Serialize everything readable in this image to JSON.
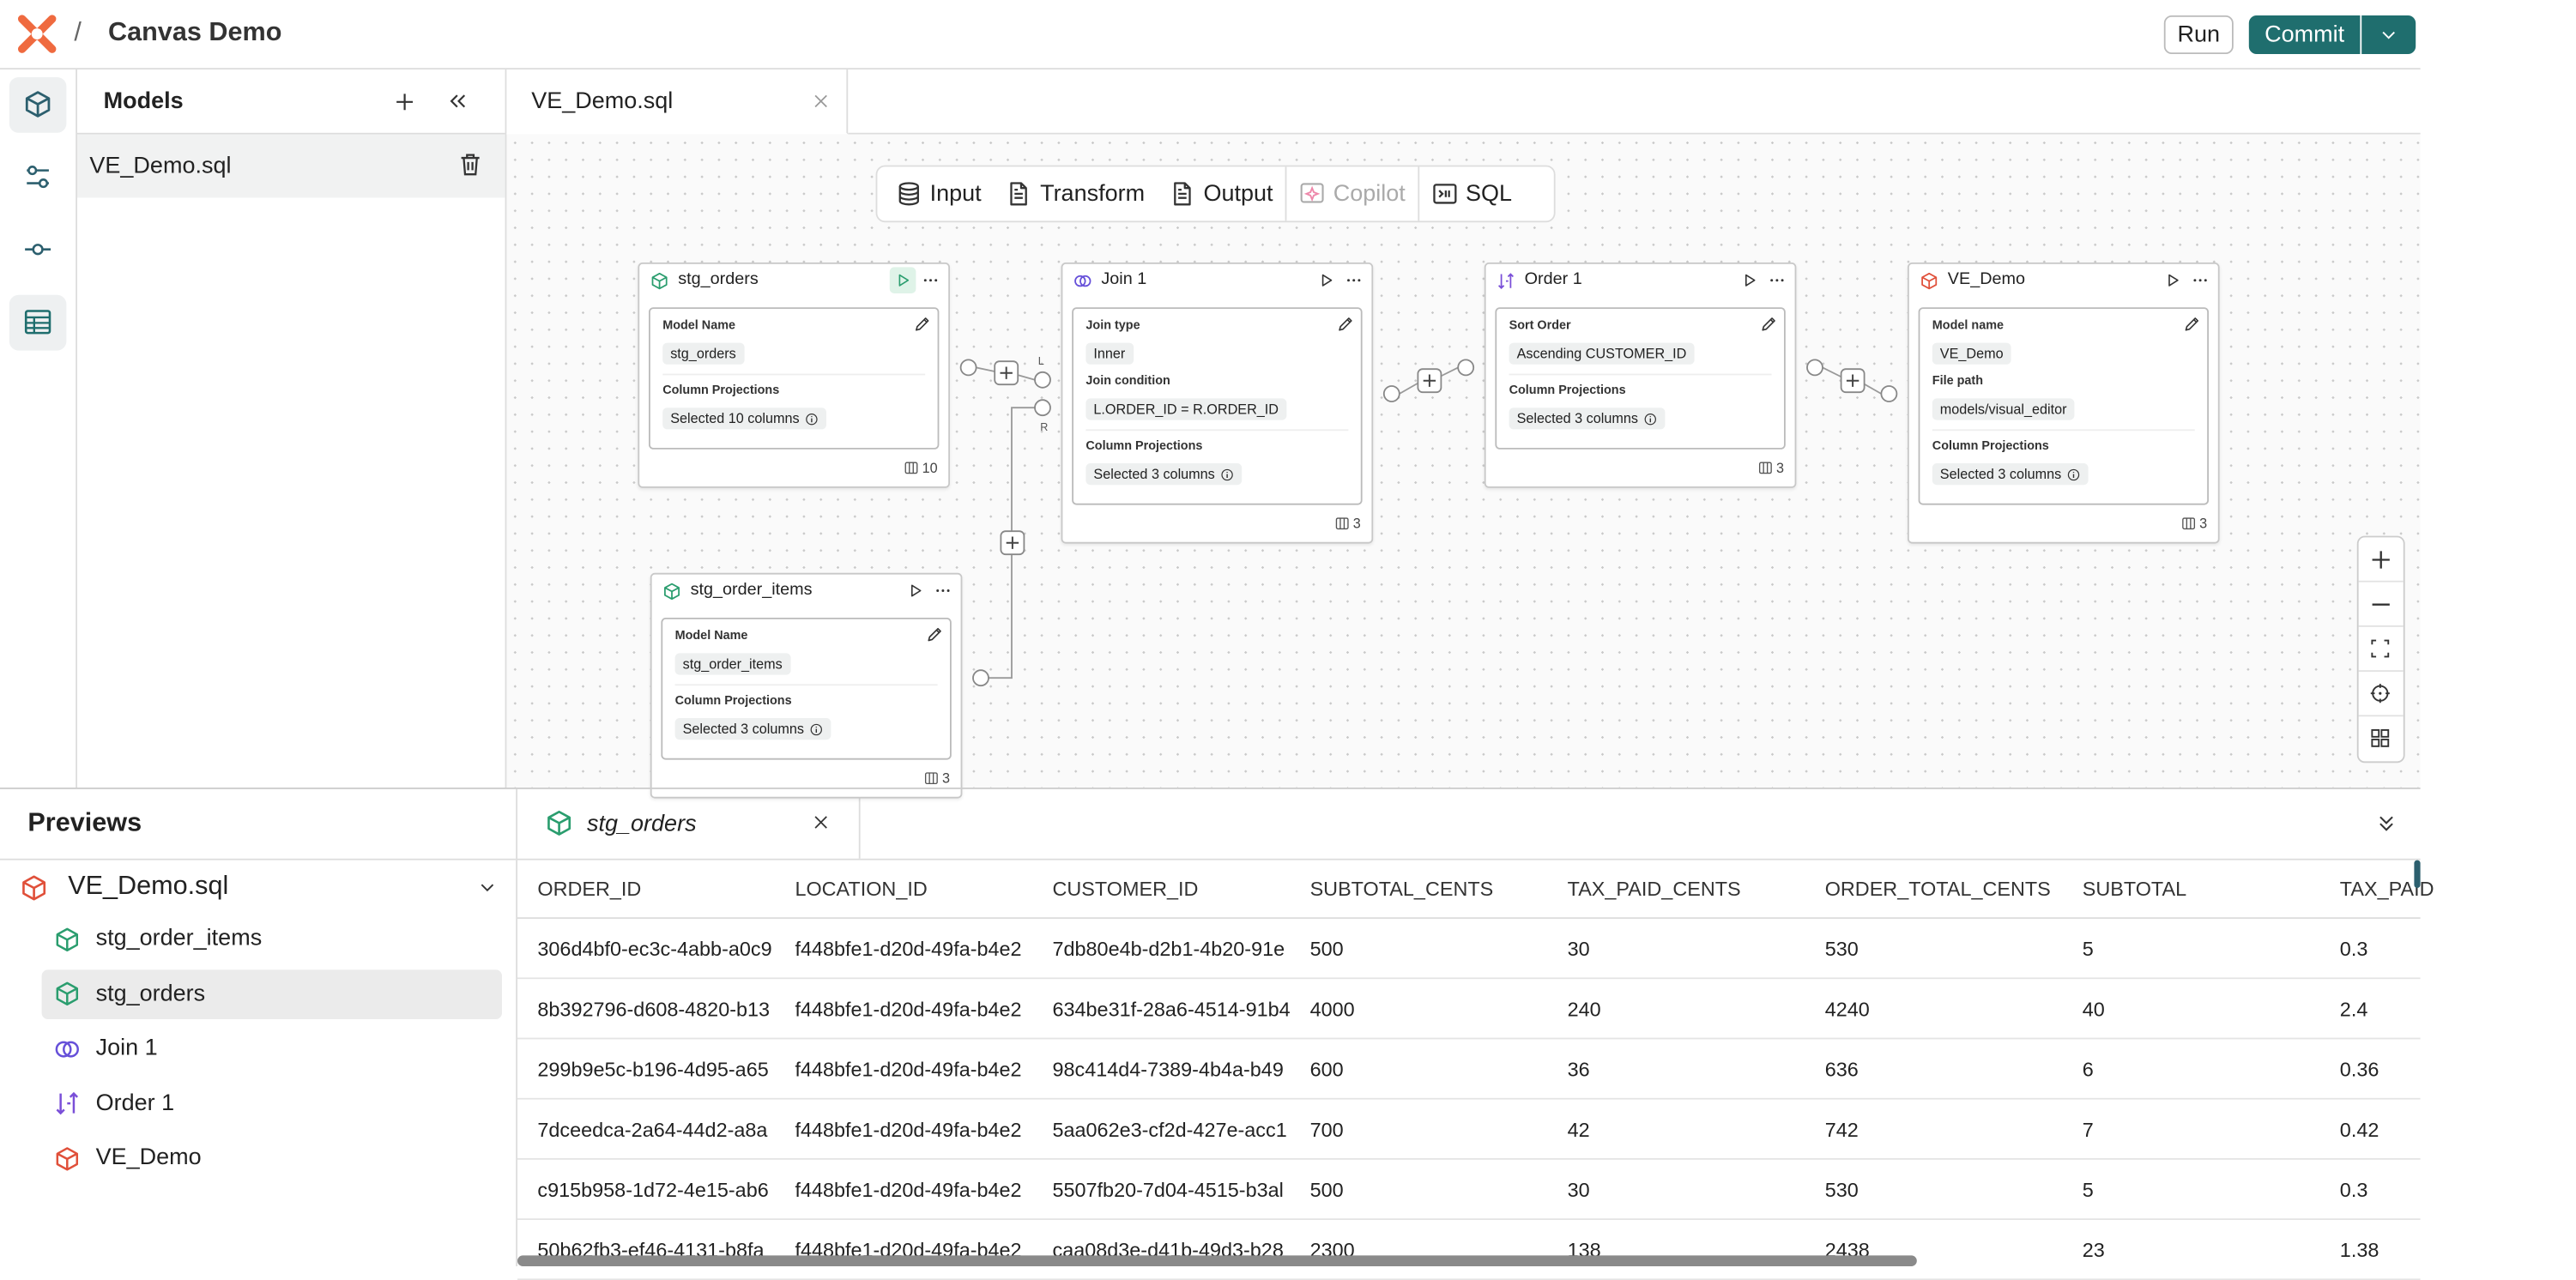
{
  "header": {
    "title": "Canvas Demo",
    "separator": "/",
    "run": "Run",
    "commit": "Commit"
  },
  "models_panel": {
    "title": "Models",
    "files": [
      "VE_Demo.sql"
    ]
  },
  "editor_tab": "VE_Demo.sql",
  "toolbar": [
    {
      "label": "Input",
      "icon": "db"
    },
    {
      "label": "Transform",
      "icon": "doc"
    },
    {
      "label": "Output",
      "icon": "doc"
    },
    {
      "label": "Copilot",
      "icon": "spark",
      "disabled": true
    },
    {
      "label": "SQL",
      "icon": "sql"
    }
  ],
  "nodes": [
    {
      "title": "stg_orders",
      "icon": "model",
      "fields": [
        {
          "label": "Model Name",
          "value": "stg_orders"
        },
        {
          "label": "Column Projections",
          "value": "Selected 10 columns",
          "info": true
        }
      ],
      "count": 10
    },
    {
      "title": "Join 1",
      "icon": "join",
      "fields": [
        {
          "label": "Join type",
          "value": "Inner"
        },
        {
          "label": "Join condition",
          "value": "L.ORDER_ID = R.ORDER_ID"
        },
        {
          "label": "Column Projections",
          "value": "Selected 3 columns",
          "info": true
        }
      ],
      "count": 3
    },
    {
      "title": "Order 1",
      "icon": "sort",
      "fields": [
        {
          "label": "Sort Order",
          "value": "Ascending CUSTOMER_ID"
        },
        {
          "label": "Column Projections",
          "value": "Selected 3 columns",
          "info": true
        }
      ],
      "count": 3
    },
    {
      "title": "VE_Demo",
      "icon": "output",
      "fields": [
        {
          "label": "Model name",
          "value": "VE_Demo"
        },
        {
          "label": "File path",
          "value": "models/visual_editor"
        },
        {
          "label": "Column Projections",
          "value": "Selected 3 columns",
          "info": true
        }
      ],
      "count": 3
    },
    {
      "title": "stg_order_items",
      "icon": "model",
      "fields": [
        {
          "label": "Model Name",
          "value": "stg_order_items"
        },
        {
          "label": "Column Projections",
          "value": "Selected 3 columns",
          "info": true
        }
      ],
      "count": 3
    }
  ],
  "join_ports": [
    "L",
    "R"
  ],
  "previews": {
    "title": "Previews",
    "tree": {
      "label": "VE_Demo.sql",
      "icon": "output",
      "children": [
        {
          "label": "stg_order_items",
          "icon": "model"
        },
        {
          "label": "stg_orders",
          "icon": "model",
          "selected": true
        },
        {
          "label": "Join 1",
          "icon": "join"
        },
        {
          "label": "Order 1",
          "icon": "sort"
        },
        {
          "label": "VE_Demo",
          "icon": "output"
        }
      ]
    },
    "tab": "stg_orders",
    "table": {
      "columns": [
        "ORDER_ID",
        "LOCATION_ID",
        "CUSTOMER_ID",
        "SUBTOTAL_CENTS",
        "TAX_PAID_CENTS",
        "ORDER_TOTAL_CENTS",
        "SUBTOTAL",
        "TAX_PAID"
      ],
      "rows": [
        [
          "306d4bf0-ec3c-4abb-a0c9",
          "f448bfe1-d20d-49fa-b4e2",
          "7db80e4b-d2b1-4b20-91e",
          500,
          30,
          530,
          5,
          0.3
        ],
        [
          "8b392796-d608-4820-b13",
          "f448bfe1-d20d-49fa-b4e2",
          "634be31f-28a6-4514-91b4",
          4000,
          240,
          4240,
          40,
          2.4
        ],
        [
          "299b9e5c-b196-4d95-a65",
          "f448bfe1-d20d-49fa-b4e2",
          "98c414d4-7389-4b4a-b49",
          600,
          36,
          636,
          6,
          0.36
        ],
        [
          "7dceedca-2a64-44d2-a8a",
          "f448bfe1-d20d-49fa-b4e2",
          "5aa062e3-cf2d-427e-acc1",
          700,
          42,
          742,
          7,
          0.42
        ],
        [
          "c915b958-1d72-4e15-ab6",
          "f448bfe1-d20d-49fa-b4e2",
          "5507fb20-7d04-4515-b3al",
          500,
          30,
          530,
          5,
          0.3
        ],
        [
          "50b62fb3-ef46-4131-b8fa",
          "f448bfe1-d20d-49fa-b4e2",
          "caa08d3e-d41b-49d3-b28",
          2300,
          138,
          2438,
          23,
          1.38
        ]
      ]
    }
  }
}
